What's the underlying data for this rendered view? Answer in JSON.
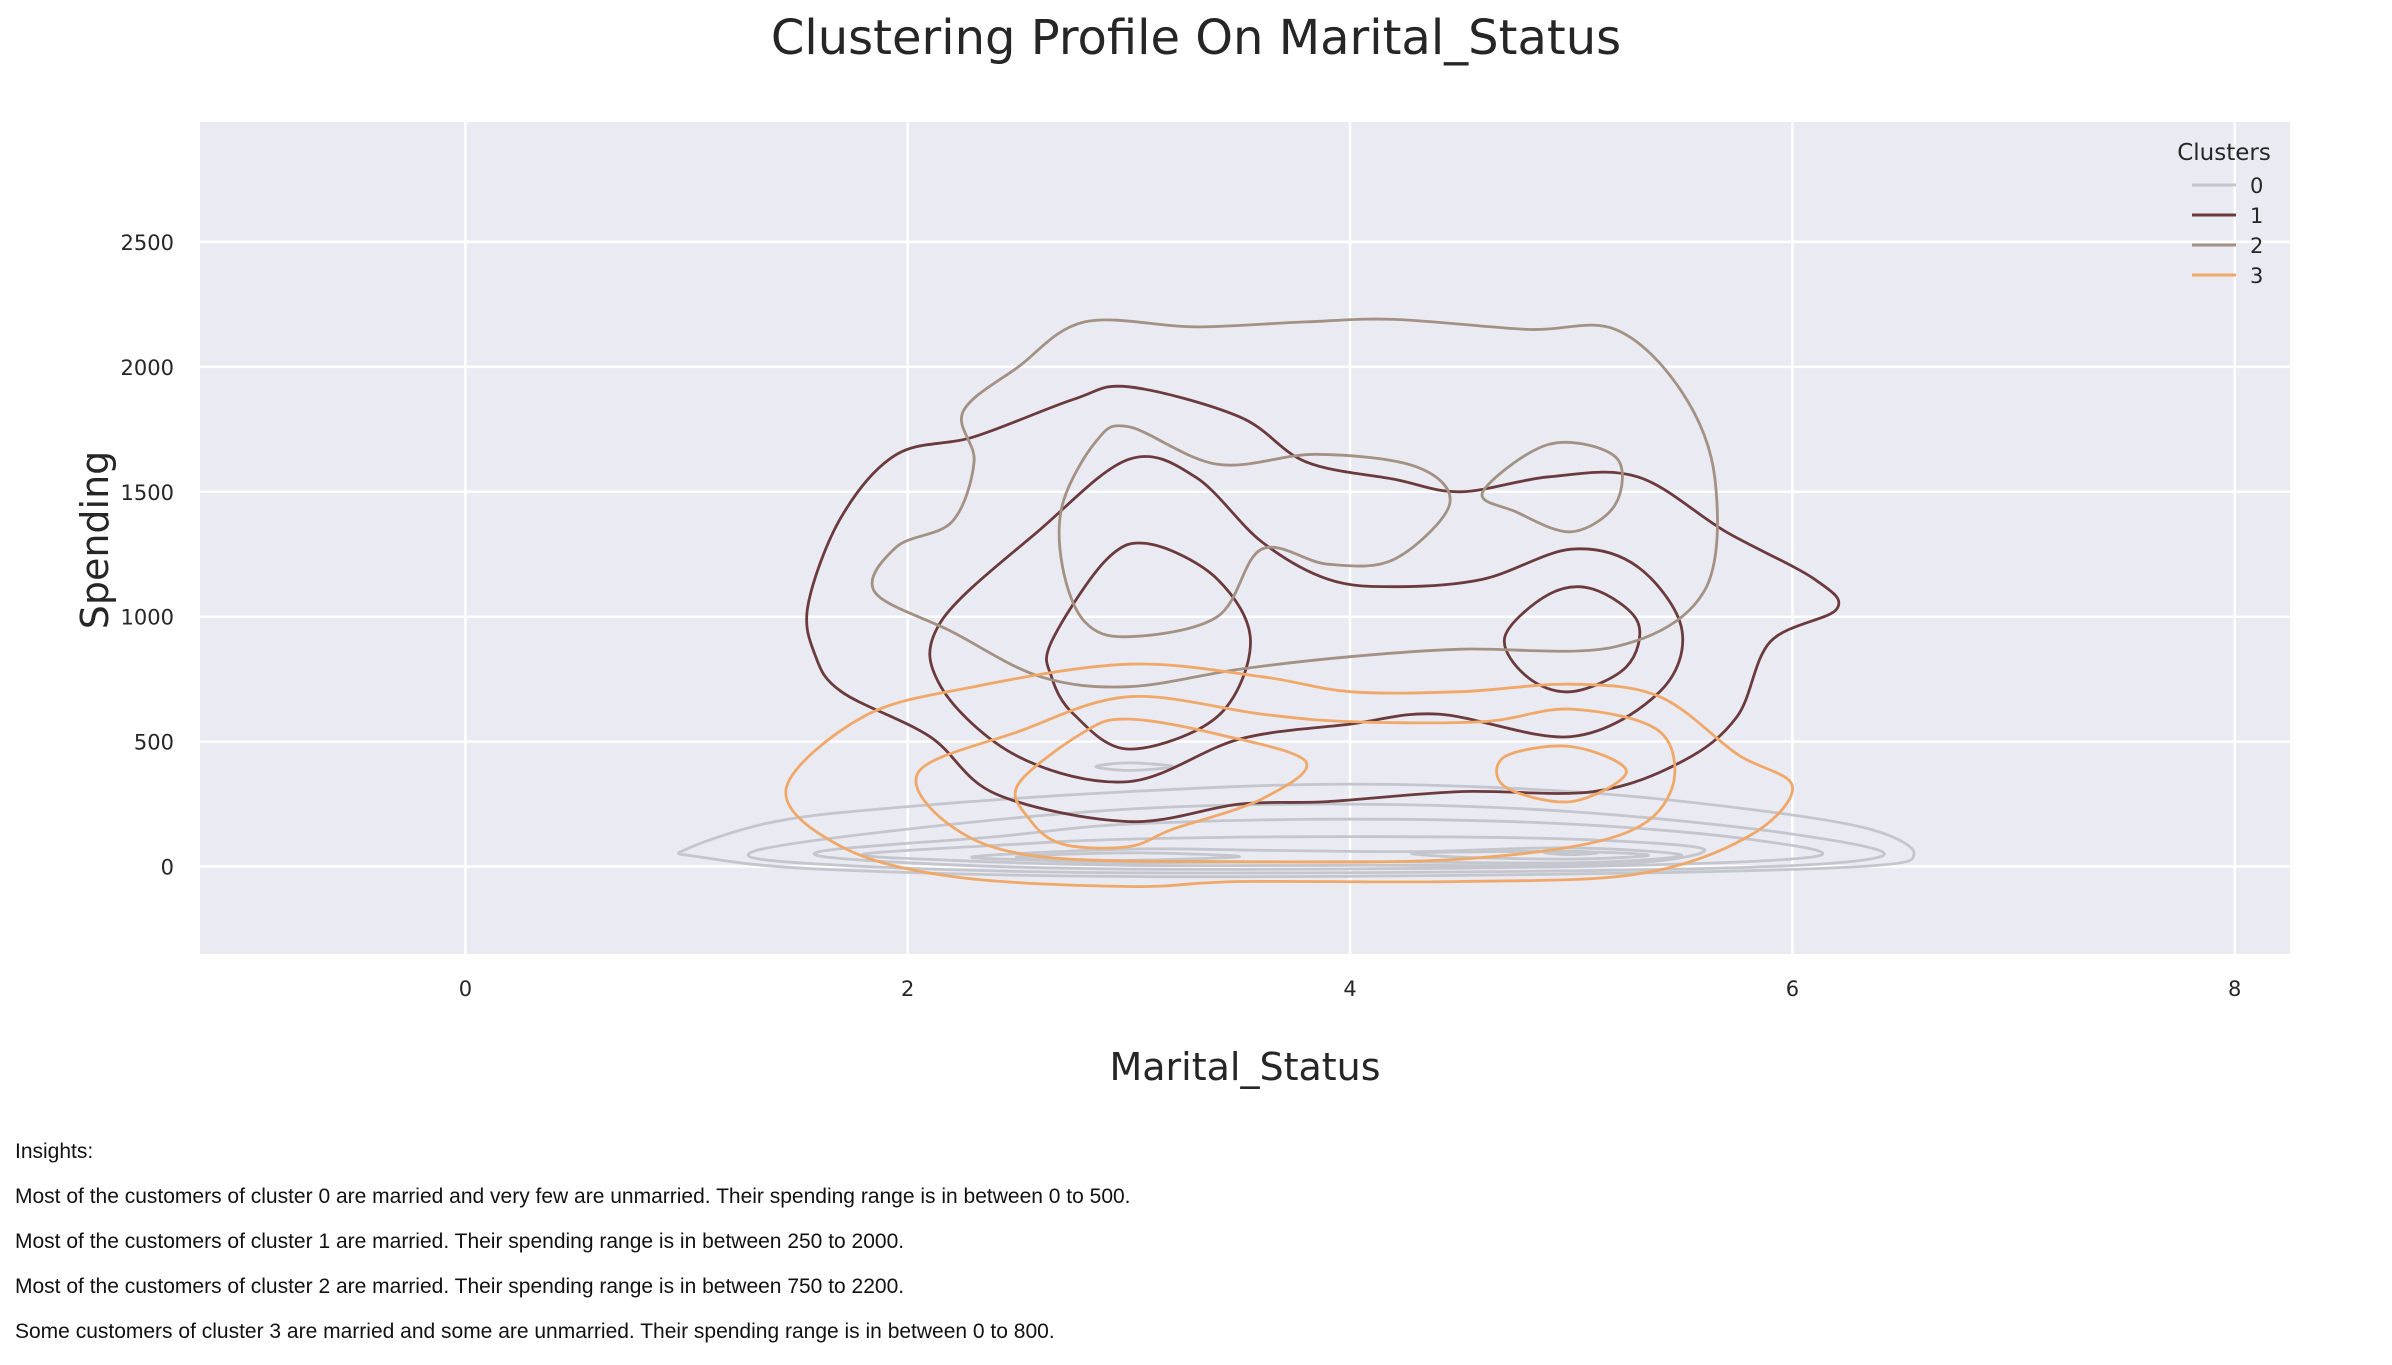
{
  "chart_data": {
    "type": "kde_contour",
    "title": "Clustering Profile On Marital_Status",
    "xlabel": "Marital_Status",
    "ylabel": "Spending",
    "xlim": [
      -1.2,
      8.25
    ],
    "ylim": [
      -350,
      2980
    ],
    "x_ticks": [
      0,
      2,
      4,
      6,
      8
    ],
    "y_ticks": [
      0,
      500,
      1000,
      1500,
      2000,
      2500
    ],
    "grid": true,
    "legend": {
      "title": "Clusters",
      "position": "top-right"
    },
    "series": [
      {
        "name": "0",
        "color": "#c3c6cc",
        "contours": [
          [
            [
              1.0,
              70
            ],
            [
              1.4,
              180
            ],
            [
              2.0,
              240
            ],
            [
              3.0,
              300
            ],
            [
              4.0,
              330
            ],
            [
              5.0,
              300
            ],
            [
              5.8,
              230
            ],
            [
              6.35,
              150
            ],
            [
              6.55,
              50
            ],
            [
              6.3,
              0
            ],
            [
              5.0,
              -30
            ],
            [
              3.0,
              -40
            ],
            [
              1.6,
              -10
            ],
            [
              1.05,
              40
            ]
          ],
          [
            [
              1.3,
              60
            ],
            [
              2.0,
              150
            ],
            [
              3.0,
              230
            ],
            [
              4.0,
              250
            ],
            [
              5.0,
              220
            ],
            [
              6.0,
              130
            ],
            [
              6.4,
              40
            ],
            [
              5.5,
              -10
            ],
            [
              3.0,
              -25
            ],
            [
              1.6,
              10
            ]
          ],
          [
            [
              1.6,
              60
            ],
            [
              2.4,
              120
            ],
            [
              3.0,
              170
            ],
            [
              4.0,
              190
            ],
            [
              5.0,
              170
            ],
            [
              5.8,
              110
            ],
            [
              6.1,
              40
            ],
            [
              5.0,
              0
            ],
            [
              3.0,
              -10
            ],
            [
              1.9,
              20
            ]
          ],
          [
            [
              1.8,
              50
            ],
            [
              2.5,
              90
            ],
            [
              3.0,
              110
            ],
            [
              4.0,
              120
            ],
            [
              5.0,
              110
            ],
            [
              5.6,
              70
            ],
            [
              5.2,
              10
            ],
            [
              4.0,
              5
            ],
            [
              3.0,
              5
            ],
            [
              2.2,
              25
            ]
          ],
          [
            [
              2.3,
              40
            ],
            [
              3.0,
              70
            ],
            [
              3.6,
              65
            ],
            [
              4.3,
              60
            ],
            [
              5.0,
              75
            ],
            [
              5.5,
              45
            ],
            [
              5.0,
              15
            ],
            [
              4.0,
              20
            ],
            [
              3.0,
              15
            ],
            [
              2.6,
              25
            ]
          ],
          [
            [
              2.5,
              40
            ],
            [
              3.0,
              55
            ],
            [
              3.5,
              40
            ],
            [
              3.0,
              25
            ],
            [
              2.7,
              30
            ]
          ],
          [
            [
              4.3,
              55
            ],
            [
              5.0,
              60
            ],
            [
              5.35,
              45
            ],
            [
              5.0,
              30
            ],
            [
              4.5,
              38
            ]
          ],
          [
            [
              2.85,
              400
            ],
            [
              3.0,
              415
            ],
            [
              3.2,
              400
            ],
            [
              3.0,
              385
            ]
          ],
          [
            [
              4.88,
              55
            ],
            [
              5.0,
              62
            ],
            [
              5.12,
              55
            ],
            [
              5.0,
              48
            ]
          ]
        ]
      },
      {
        "name": "1",
        "color": "#6b3a3c",
        "contours": [
          [
            [
              1.55,
              1050
            ],
            [
              1.7,
              1400
            ],
            [
              1.95,
              1650
            ],
            [
              2.3,
              1720
            ],
            [
              2.75,
              1870
            ],
            [
              3.0,
              1920
            ],
            [
              3.5,
              1800
            ],
            [
              3.8,
              1620
            ],
            [
              4.2,
              1550
            ],
            [
              4.5,
              1500
            ],
            [
              4.9,
              1560
            ],
            [
              5.3,
              1560
            ],
            [
              5.7,
              1340
            ],
            [
              6.1,
              1150
            ],
            [
              6.2,
              1030
            ],
            [
              5.9,
              900
            ],
            [
              5.75,
              600
            ],
            [
              5.5,
              420
            ],
            [
              5.1,
              300
            ],
            [
              4.5,
              300
            ],
            [
              3.9,
              260
            ],
            [
              3.5,
              250
            ],
            [
              3.0,
              180
            ],
            [
              2.4,
              290
            ],
            [
              2.1,
              520
            ],
            [
              1.7,
              700
            ],
            [
              1.58,
              850
            ]
          ],
          [
            [
              2.15,
              980
            ],
            [
              2.6,
              1350
            ],
            [
              3.0,
              1630
            ],
            [
              3.3,
              1560
            ],
            [
              3.6,
              1300
            ],
            [
              3.9,
              1150
            ],
            [
              4.2,
              1120
            ],
            [
              4.6,
              1150
            ],
            [
              5.0,
              1270
            ],
            [
              5.3,
              1200
            ],
            [
              5.5,
              950
            ],
            [
              5.4,
              700
            ],
            [
              5.0,
              520
            ],
            [
              4.4,
              610
            ],
            [
              4.0,
              570
            ],
            [
              3.5,
              510
            ],
            [
              3.0,
              340
            ],
            [
              2.5,
              440
            ],
            [
              2.15,
              720
            ]
          ],
          [
            [
              2.65,
              900
            ],
            [
              2.9,
              1230
            ],
            [
              3.1,
              1290
            ],
            [
              3.4,
              1150
            ],
            [
              3.55,
              900
            ],
            [
              3.4,
              600
            ],
            [
              3.0,
              470
            ],
            [
              2.75,
              610
            ],
            [
              2.65,
              760
            ]
          ],
          [
            [
              4.7,
              920
            ],
            [
              4.9,
              1090
            ],
            [
              5.1,
              1110
            ],
            [
              5.3,
              980
            ],
            [
              5.25,
              800
            ],
            [
              5.0,
              700
            ],
            [
              4.8,
              760
            ]
          ]
        ]
      },
      {
        "name": "2",
        "color": "#a39184",
        "contours": [
          [
            [
              2.25,
              1820
            ],
            [
              2.5,
              2000
            ],
            [
              2.8,
              2180
            ],
            [
              3.3,
              2160
            ],
            [
              3.8,
              2180
            ],
            [
              4.2,
              2190
            ],
            [
              4.8,
              2150
            ],
            [
              5.2,
              2150
            ],
            [
              5.5,
              1900
            ],
            [
              5.65,
              1550
            ],
            [
              5.6,
              1100
            ],
            [
              5.2,
              880
            ],
            [
              4.5,
              870
            ],
            [
              4.0,
              840
            ],
            [
              3.5,
              790
            ],
            [
              3.0,
              720
            ],
            [
              2.6,
              760
            ],
            [
              2.2,
              940
            ],
            [
              1.85,
              1100
            ],
            [
              1.95,
              1280
            ],
            [
              2.2,
              1380
            ],
            [
              2.3,
              1620
            ]
          ],
          [
            [
              2.7,
              1450
            ],
            [
              2.85,
              1700
            ],
            [
              3.0,
              1760
            ],
            [
              3.4,
              1610
            ],
            [
              3.85,
              1650
            ],
            [
              4.3,
              1600
            ],
            [
              4.45,
              1450
            ],
            [
              4.2,
              1230
            ],
            [
              3.9,
              1210
            ],
            [
              3.6,
              1270
            ],
            [
              3.4,
              1000
            ],
            [
              3.0,
              920
            ],
            [
              2.8,
              980
            ],
            [
              2.7,
              1200
            ]
          ],
          [
            [
              4.6,
              1500
            ],
            [
              4.9,
              1690
            ],
            [
              5.2,
              1640
            ],
            [
              5.2,
              1450
            ],
            [
              5.0,
              1340
            ],
            [
              4.75,
              1420
            ]
          ]
        ]
      },
      {
        "name": "3",
        "color": "#f0a868",
        "contours": [
          [
            [
              1.45,
              310
            ],
            [
              1.8,
              600
            ],
            [
              2.3,
              720
            ],
            [
              3.0,
              810
            ],
            [
              3.6,
              760
            ],
            [
              4.0,
              700
            ],
            [
              4.5,
              700
            ],
            [
              5.0,
              730
            ],
            [
              5.4,
              680
            ],
            [
              5.75,
              450
            ],
            [
              6.0,
              320
            ],
            [
              5.8,
              120
            ],
            [
              5.3,
              -30
            ],
            [
              4.5,
              -60
            ],
            [
              3.5,
              -60
            ],
            [
              3.0,
              -80
            ],
            [
              2.2,
              -40
            ],
            [
              1.7,
              80
            ]
          ],
          [
            [
              2.05,
              380
            ],
            [
              2.5,
              540
            ],
            [
              3.0,
              680
            ],
            [
              3.6,
              610
            ],
            [
              4.0,
              580
            ],
            [
              4.6,
              580
            ],
            [
              5.0,
              630
            ],
            [
              5.4,
              540
            ],
            [
              5.45,
              300
            ],
            [
              5.2,
              120
            ],
            [
              4.5,
              30
            ],
            [
              3.5,
              20
            ],
            [
              2.6,
              40
            ],
            [
              2.2,
              160
            ]
          ],
          [
            [
              2.5,
              330
            ],
            [
              2.8,
              540
            ],
            [
              3.0,
              590
            ],
            [
              3.4,
              530
            ],
            [
              3.8,
              420
            ],
            [
              3.6,
              270
            ],
            [
              3.2,
              150
            ],
            [
              3.0,
              80
            ],
            [
              2.7,
              90
            ],
            [
              2.55,
              190
            ]
          ],
          [
            [
              4.7,
              440
            ],
            [
              5.0,
              480
            ],
            [
              5.25,
              380
            ],
            [
              5.0,
              260
            ],
            [
              4.7,
              320
            ]
          ]
        ]
      }
    ]
  },
  "insights": {
    "heading": "Insights:",
    "lines": [
      "Most of the customers of cluster 0 are married and very few are unmarried. Their spending range is in between 0 to 500.",
      "Most of the customers of cluster 1 are married. Their spending range is in between 250 to 2000.",
      "Most of the customers of cluster 2 are married. Their spending range is in between 750 to 2200.",
      "Some customers of cluster 3 are married and some are unmarried. Their spending range is in between 0 to 800."
    ]
  }
}
